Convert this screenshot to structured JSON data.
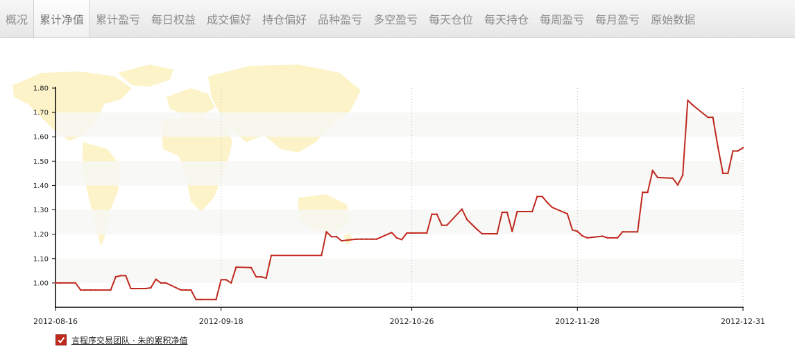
{
  "tabs": [
    {
      "label": "概况",
      "active": false
    },
    {
      "label": "累计净值",
      "active": true
    },
    {
      "label": "累计盈亏",
      "active": false
    },
    {
      "label": "每日权益",
      "active": false
    },
    {
      "label": "成交偏好",
      "active": false
    },
    {
      "label": "持仓偏好",
      "active": false
    },
    {
      "label": "品种盈亏",
      "active": false
    },
    {
      "label": "多空盈亏",
      "active": false
    },
    {
      "label": "每天仓位",
      "active": false
    },
    {
      "label": "每天持仓",
      "active": false
    },
    {
      "label": "每周盈亏",
      "active": false
    },
    {
      "label": "每月盈亏",
      "active": false
    },
    {
      "label": "原始数据",
      "active": false
    }
  ],
  "legend": {
    "label": "言程序交易团队 · 朱的累积净值",
    "checked": true
  },
  "colors": {
    "line": "#c0281e",
    "band": "#f7f7f5",
    "map": "#fdf2c6"
  },
  "chart_data": {
    "type": "line",
    "title": "",
    "xlabel": "",
    "ylabel": "",
    "ylim": [
      0.9,
      1.8
    ],
    "yticks": [
      "1.00",
      "1.10",
      "1.20",
      "1.30",
      "1.40",
      "1.50",
      "1.60",
      "1.70",
      "1.80"
    ],
    "xticks": [
      "2012-08-16",
      "2012-09-18",
      "2012-10-26",
      "2012-11-28",
      "2012-12-31"
    ],
    "grid": true,
    "legend_position": "bottom-left",
    "series": [
      {
        "name": "言程序交易团队 · 朱的累积净值",
        "points": [
          [
            "2012-08-16",
            1.0
          ],
          [
            "2012-08-17",
            1.0
          ],
          [
            "2012-08-20",
            1.0
          ],
          [
            "2012-08-21",
            0.971
          ],
          [
            "2012-08-22",
            0.971
          ],
          [
            "2012-08-23",
            0.971
          ],
          [
            "2012-08-24",
            0.971
          ],
          [
            "2012-08-27",
            0.971
          ],
          [
            "2012-08-28",
            1.025
          ],
          [
            "2012-08-29",
            1.03
          ],
          [
            "2012-08-30",
            1.03
          ],
          [
            "2012-08-31",
            0.977
          ],
          [
            "2012-09-03",
            0.977
          ],
          [
            "2012-09-04",
            0.98
          ],
          [
            "2012-09-05",
            1.015
          ],
          [
            "2012-09-06",
            1.0
          ],
          [
            "2012-09-07",
            1.0
          ],
          [
            "2012-09-10",
            0.971
          ],
          [
            "2012-09-11",
            0.971
          ],
          [
            "2012-09-12",
            0.971
          ],
          [
            "2012-09-13",
            0.932
          ],
          [
            "2012-09-14",
            0.932
          ],
          [
            "2012-09-17",
            0.932
          ],
          [
            "2012-09-18",
            1.013
          ],
          [
            "2012-09-19",
            1.013
          ],
          [
            "2012-09-20",
            1.0
          ],
          [
            "2012-09-21",
            1.065
          ],
          [
            "2012-09-24",
            1.063
          ],
          [
            "2012-09-25",
            1.025
          ],
          [
            "2012-09-26",
            1.025
          ],
          [
            "2012-09-27",
            1.02
          ],
          [
            "2012-09-28",
            1.113
          ],
          [
            "2012-10-08",
            1.113
          ],
          [
            "2012-10-09",
            1.21
          ],
          [
            "2012-10-10",
            1.19
          ],
          [
            "2012-10-11",
            1.19
          ],
          [
            "2012-10-12",
            1.173
          ],
          [
            "2012-10-15",
            1.18
          ],
          [
            "2012-10-16",
            1.18
          ],
          [
            "2012-10-17",
            1.18
          ],
          [
            "2012-10-18",
            1.18
          ],
          [
            "2012-10-19",
            1.18
          ],
          [
            "2012-10-22",
            1.207
          ],
          [
            "2012-10-23",
            1.185
          ],
          [
            "2012-10-24",
            1.178
          ],
          [
            "2012-10-25",
            1.205
          ],
          [
            "2012-10-26",
            1.205
          ],
          [
            "2012-10-29",
            1.205
          ],
          [
            "2012-10-30",
            1.282
          ],
          [
            "2012-10-31",
            1.282
          ],
          [
            "2012-11-01",
            1.237
          ],
          [
            "2012-11-02",
            1.237
          ],
          [
            "2012-11-05",
            1.303
          ],
          [
            "2012-11-06",
            1.26
          ],
          [
            "2012-11-07",
            1.24
          ],
          [
            "2012-11-08",
            1.22
          ],
          [
            "2012-11-09",
            1.202
          ],
          [
            "2012-11-12",
            1.202
          ],
          [
            "2012-11-13",
            1.29
          ],
          [
            "2012-11-14",
            1.29
          ],
          [
            "2012-11-15",
            1.212
          ],
          [
            "2012-11-16",
            1.293
          ],
          [
            "2012-11-19",
            1.293
          ],
          [
            "2012-11-20",
            1.355
          ],
          [
            "2012-11-21",
            1.355
          ],
          [
            "2012-11-22",
            1.33
          ],
          [
            "2012-11-23",
            1.31
          ],
          [
            "2012-11-26",
            1.284
          ],
          [
            "2012-11-27",
            1.218
          ],
          [
            "2012-11-28",
            1.212
          ],
          [
            "2012-11-29",
            1.193
          ],
          [
            "2012-11-30",
            1.185
          ],
          [
            "2012-12-03",
            1.192
          ],
          [
            "2012-12-04",
            1.185
          ],
          [
            "2012-12-05",
            1.185
          ],
          [
            "2012-12-06",
            1.185
          ],
          [
            "2012-12-07",
            1.21
          ],
          [
            "2012-12-10",
            1.21
          ],
          [
            "2012-12-11",
            1.372
          ],
          [
            "2012-12-12",
            1.372
          ],
          [
            "2012-12-13",
            1.462
          ],
          [
            "2012-12-14",
            1.433
          ],
          [
            "2012-12-17",
            1.43
          ],
          [
            "2012-12-18",
            1.402
          ],
          [
            "2012-12-19",
            1.443
          ],
          [
            "2012-12-20",
            1.75
          ],
          [
            "2012-12-21",
            1.73
          ],
          [
            "2012-12-24",
            1.68
          ],
          [
            "2012-12-25",
            1.68
          ],
          [
            "2012-12-26",
            1.56
          ],
          [
            "2012-12-27",
            1.45
          ],
          [
            "2012-12-28",
            1.45
          ],
          [
            "2012-12-29",
            1.542
          ],
          [
            "2012-12-30",
            1.542
          ],
          [
            "2012-12-31",
            1.555
          ]
        ]
      }
    ]
  }
}
